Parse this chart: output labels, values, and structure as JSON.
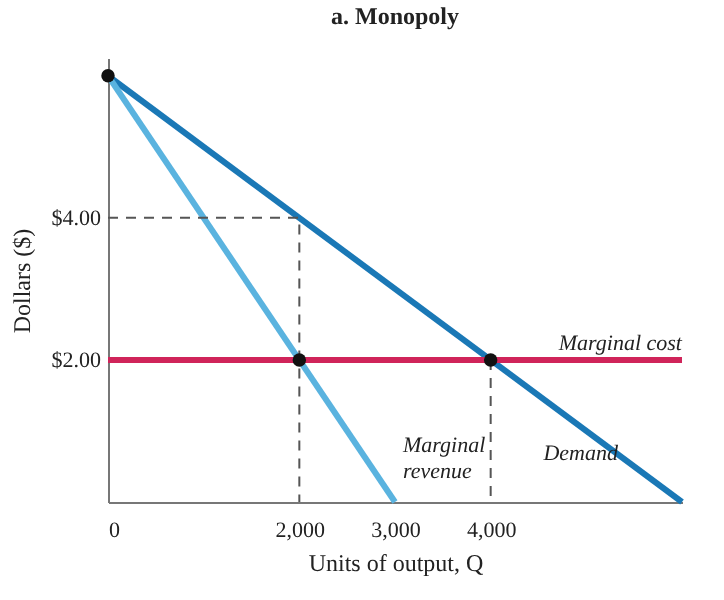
{
  "chart_data": {
    "type": "line",
    "title": "a. Monopoly",
    "xlabel": "Units of output, Q",
    "ylabel": "Dollars ($)",
    "xlim": [
      0,
      6000
    ],
    "ylim": [
      0,
      6.25
    ],
    "xticks": [
      0,
      {
        "value": 2000,
        "label": "2,000"
      },
      {
        "value": 3000,
        "label": "3,000"
      },
      {
        "value": 4000,
        "label": "4,000"
      }
    ],
    "yticks": [
      {
        "value": 2,
        "label": "$2.00"
      },
      {
        "value": 4,
        "label": "$4.00"
      }
    ],
    "series": [
      {
        "name": "Demand",
        "color": "#1a78b6",
        "x": [
          0,
          6000
        ],
        "values": [
          6,
          0
        ]
      },
      {
        "name": "Marginal revenue",
        "color": "#5ab3df",
        "x": [
          0,
          3000
        ],
        "values": [
          6,
          0
        ]
      },
      {
        "name": "Marginal cost",
        "color": "#d0245a",
        "x": [
          0,
          6000
        ],
        "values": [
          2,
          2
        ]
      },
      {
        "color": "#555555",
        "line_style": "dashed",
        "x": [
          0,
          2000,
          2000
        ],
        "values": [
          4,
          4,
          0
        ]
      },
      {
        "color": "#555555",
        "line_style": "dashed",
        "x": [
          4000,
          4000
        ],
        "values": [
          2,
          0
        ]
      },
      {
        "type": "scatter",
        "marker": "circle",
        "color": "#111111",
        "x": [
          0,
          2000,
          4000
        ],
        "values": [
          6,
          2,
          2
        ]
      }
    ]
  }
}
